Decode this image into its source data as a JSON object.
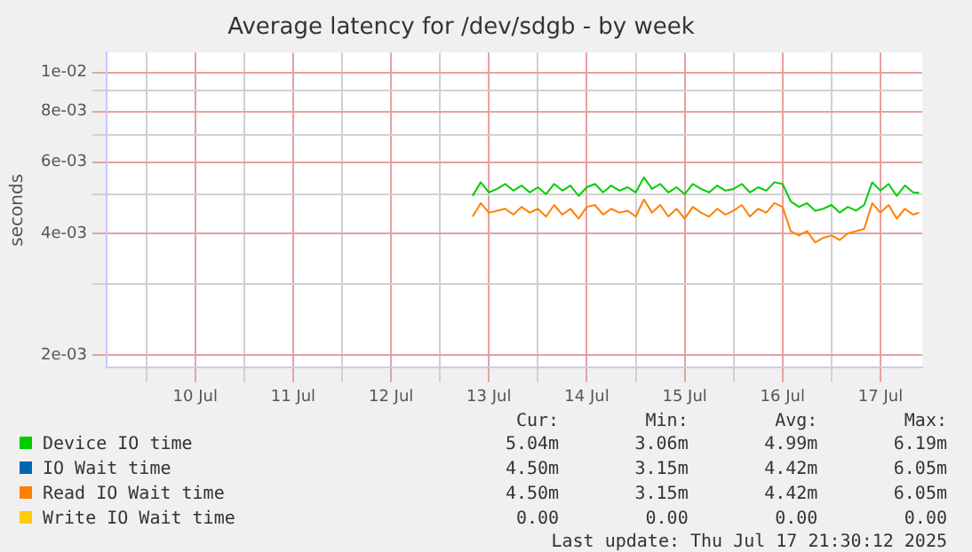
{
  "chart_data": {
    "type": "line",
    "title": "Average latency for /dev/sdgb - by week",
    "ylabel": "seconds",
    "log": "y",
    "grid": true,
    "legend": "bottom",
    "marker": "none",
    "line_style": "solid",
    "xlim": [
      "2025-07-09T14:15",
      "2025-07-17T22:15"
    ],
    "xticks": [
      {
        "value": "2025-07-10T00:00",
        "label": null
      },
      {
        "value": "2025-07-10T12:00",
        "label": "10 Jul"
      },
      {
        "value": "2025-07-11T00:00",
        "label": null
      },
      {
        "value": "2025-07-11T12:00",
        "label": "11 Jul"
      },
      {
        "value": "2025-07-12T00:00",
        "label": null
      },
      {
        "value": "2025-07-12T12:00",
        "label": "12 Jul"
      },
      {
        "value": "2025-07-13T00:00",
        "label": null
      },
      {
        "value": "2025-07-13T12:00",
        "label": "13 Jul"
      },
      {
        "value": "2025-07-14T00:00",
        "label": null
      },
      {
        "value": "2025-07-14T12:00",
        "label": "14 Jul"
      },
      {
        "value": "2025-07-15T00:00",
        "label": null
      },
      {
        "value": "2025-07-15T12:00",
        "label": "15 Jul"
      },
      {
        "value": "2025-07-16T00:00",
        "label": null
      },
      {
        "value": "2025-07-16T12:00",
        "label": "16 Jul"
      },
      {
        "value": "2025-07-17T00:00",
        "label": null
      },
      {
        "value": "2025-07-17T12:00",
        "label": "17 Jul"
      }
    ],
    "ylim": [
      0.00186,
      0.0112
    ],
    "yticks": [
      {
        "value": 0.002,
        "label": "2e-03"
      },
      {
        "value": 0.003,
        "label": null
      },
      {
        "value": 0.004,
        "label": "4e-03"
      },
      {
        "value": 0.005,
        "label": null
      },
      {
        "value": 0.006,
        "label": "6e-03"
      },
      {
        "value": 0.007,
        "label": null
      },
      {
        "value": 0.008,
        "label": "8e-03"
      },
      {
        "value": 0.009,
        "label": null
      },
      {
        "value": 0.01,
        "label": "1e-02"
      }
    ],
    "x": [
      "2025-07-13T08:00",
      "2025-07-13T10:00",
      "2025-07-13T12:00",
      "2025-07-13T14:00",
      "2025-07-13T16:00",
      "2025-07-13T18:00",
      "2025-07-13T20:00",
      "2025-07-13T22:00",
      "2025-07-14T00:00",
      "2025-07-14T02:00",
      "2025-07-14T04:00",
      "2025-07-14T06:00",
      "2025-07-14T08:00",
      "2025-07-14T10:00",
      "2025-07-14T12:00",
      "2025-07-14T14:00",
      "2025-07-14T16:00",
      "2025-07-14T18:00",
      "2025-07-14T20:00",
      "2025-07-14T22:00",
      "2025-07-15T00:00",
      "2025-07-15T02:00",
      "2025-07-15T04:00",
      "2025-07-15T06:00",
      "2025-07-15T08:00",
      "2025-07-15T10:00",
      "2025-07-15T12:00",
      "2025-07-15T14:00",
      "2025-07-15T16:00",
      "2025-07-15T18:00",
      "2025-07-15T20:00",
      "2025-07-15T22:00",
      "2025-07-16T00:00",
      "2025-07-16T02:00",
      "2025-07-16T04:00",
      "2025-07-16T06:00",
      "2025-07-16T08:00",
      "2025-07-16T10:00",
      "2025-07-16T12:00",
      "2025-07-16T14:00",
      "2025-07-16T16:00",
      "2025-07-16T18:00",
      "2025-07-16T20:00",
      "2025-07-16T22:00",
      "2025-07-17T00:00",
      "2025-07-17T02:00",
      "2025-07-17T04:00",
      "2025-07-17T06:00",
      "2025-07-17T08:00",
      "2025-07-17T10:00",
      "2025-07-17T12:00",
      "2025-07-17T14:00",
      "2025-07-17T16:00",
      "2025-07-17T18:00",
      "2025-07-17T20:00",
      "2025-07-17T21:30"
    ],
    "series": [
      {
        "name": "Device IO time",
        "color": "#00cc00",
        "values": [
          0.00495,
          0.00535,
          0.00505,
          0.00515,
          0.0053,
          0.0051,
          0.00525,
          0.00505,
          0.0052,
          0.005,
          0.0053,
          0.0051,
          0.00525,
          0.00495,
          0.0052,
          0.0053,
          0.00505,
          0.00525,
          0.0051,
          0.0052,
          0.00505,
          0.0055,
          0.00515,
          0.0053,
          0.00505,
          0.0052,
          0.005,
          0.0053,
          0.00515,
          0.00505,
          0.00525,
          0.0051,
          0.00515,
          0.0053,
          0.00505,
          0.0052,
          0.0051,
          0.00535,
          0.0053,
          0.0048,
          0.00465,
          0.00475,
          0.00455,
          0.0046,
          0.0047,
          0.0045,
          0.00465,
          0.00455,
          0.0047,
          0.00535,
          0.0051,
          0.0053,
          0.00495,
          0.00525,
          0.00505,
          0.00504
        ]
      },
      {
        "name": "IO Wait time",
        "color": "#0066b3",
        "values": [
          null,
          null,
          null,
          null,
          null,
          null,
          null,
          null,
          null,
          null,
          null,
          null,
          null,
          null,
          null,
          null,
          null,
          null,
          null,
          null,
          null,
          null,
          null,
          null,
          null,
          null,
          null,
          null,
          null,
          null,
          null,
          null,
          null,
          null,
          null,
          null,
          null,
          null,
          null,
          null,
          null,
          null,
          null,
          null,
          null,
          null,
          null,
          null,
          null,
          null,
          null,
          null,
          null,
          null,
          null,
          null
        ]
      },
      {
        "name": "Read IO Wait time",
        "color": "#ff8000",
        "values": [
          0.0044,
          0.00475,
          0.0045,
          0.00455,
          0.0046,
          0.00445,
          0.00465,
          0.0045,
          0.0046,
          0.0044,
          0.0047,
          0.00445,
          0.0046,
          0.00435,
          0.00465,
          0.0047,
          0.00445,
          0.0046,
          0.0045,
          0.00455,
          0.0044,
          0.00485,
          0.0045,
          0.0047,
          0.0044,
          0.0046,
          0.00435,
          0.00465,
          0.0045,
          0.0044,
          0.0046,
          0.00445,
          0.00455,
          0.0047,
          0.0044,
          0.0046,
          0.0045,
          0.00475,
          0.00465,
          0.00405,
          0.00395,
          0.00405,
          0.0038,
          0.0039,
          0.00395,
          0.00385,
          0.004,
          0.00405,
          0.0041,
          0.00475,
          0.0045,
          0.0047,
          0.00435,
          0.0046,
          0.00445,
          0.0045
        ]
      },
      {
        "name": "Write IO Wait time",
        "color": "#ffcc00",
        "values": [
          null,
          null,
          null,
          null,
          null,
          null,
          null,
          null,
          null,
          null,
          null,
          null,
          null,
          null,
          null,
          null,
          null,
          null,
          null,
          null,
          null,
          null,
          null,
          null,
          null,
          null,
          null,
          null,
          null,
          null,
          null,
          null,
          null,
          null,
          null,
          null,
          null,
          null,
          null,
          null,
          null,
          null,
          null,
          null,
          null,
          null,
          null,
          null,
          null,
          null,
          null,
          null,
          null,
          null,
          null,
          null
        ]
      }
    ],
    "annotations": [
      "Cur:",
      "Min:",
      "Avg:",
      "Max:",
      "5.04m",
      "3.06m",
      "4.99m",
      "6.19m",
      "4.50m",
      "3.15m",
      "4.42m",
      "6.05m",
      "4.50m",
      "3.15m",
      "4.42m",
      "6.05m",
      "0.00",
      "0.00",
      "0.00",
      "0.00",
      "Last update: Thu Jul 17 21:30:12 2025"
    ]
  }
}
